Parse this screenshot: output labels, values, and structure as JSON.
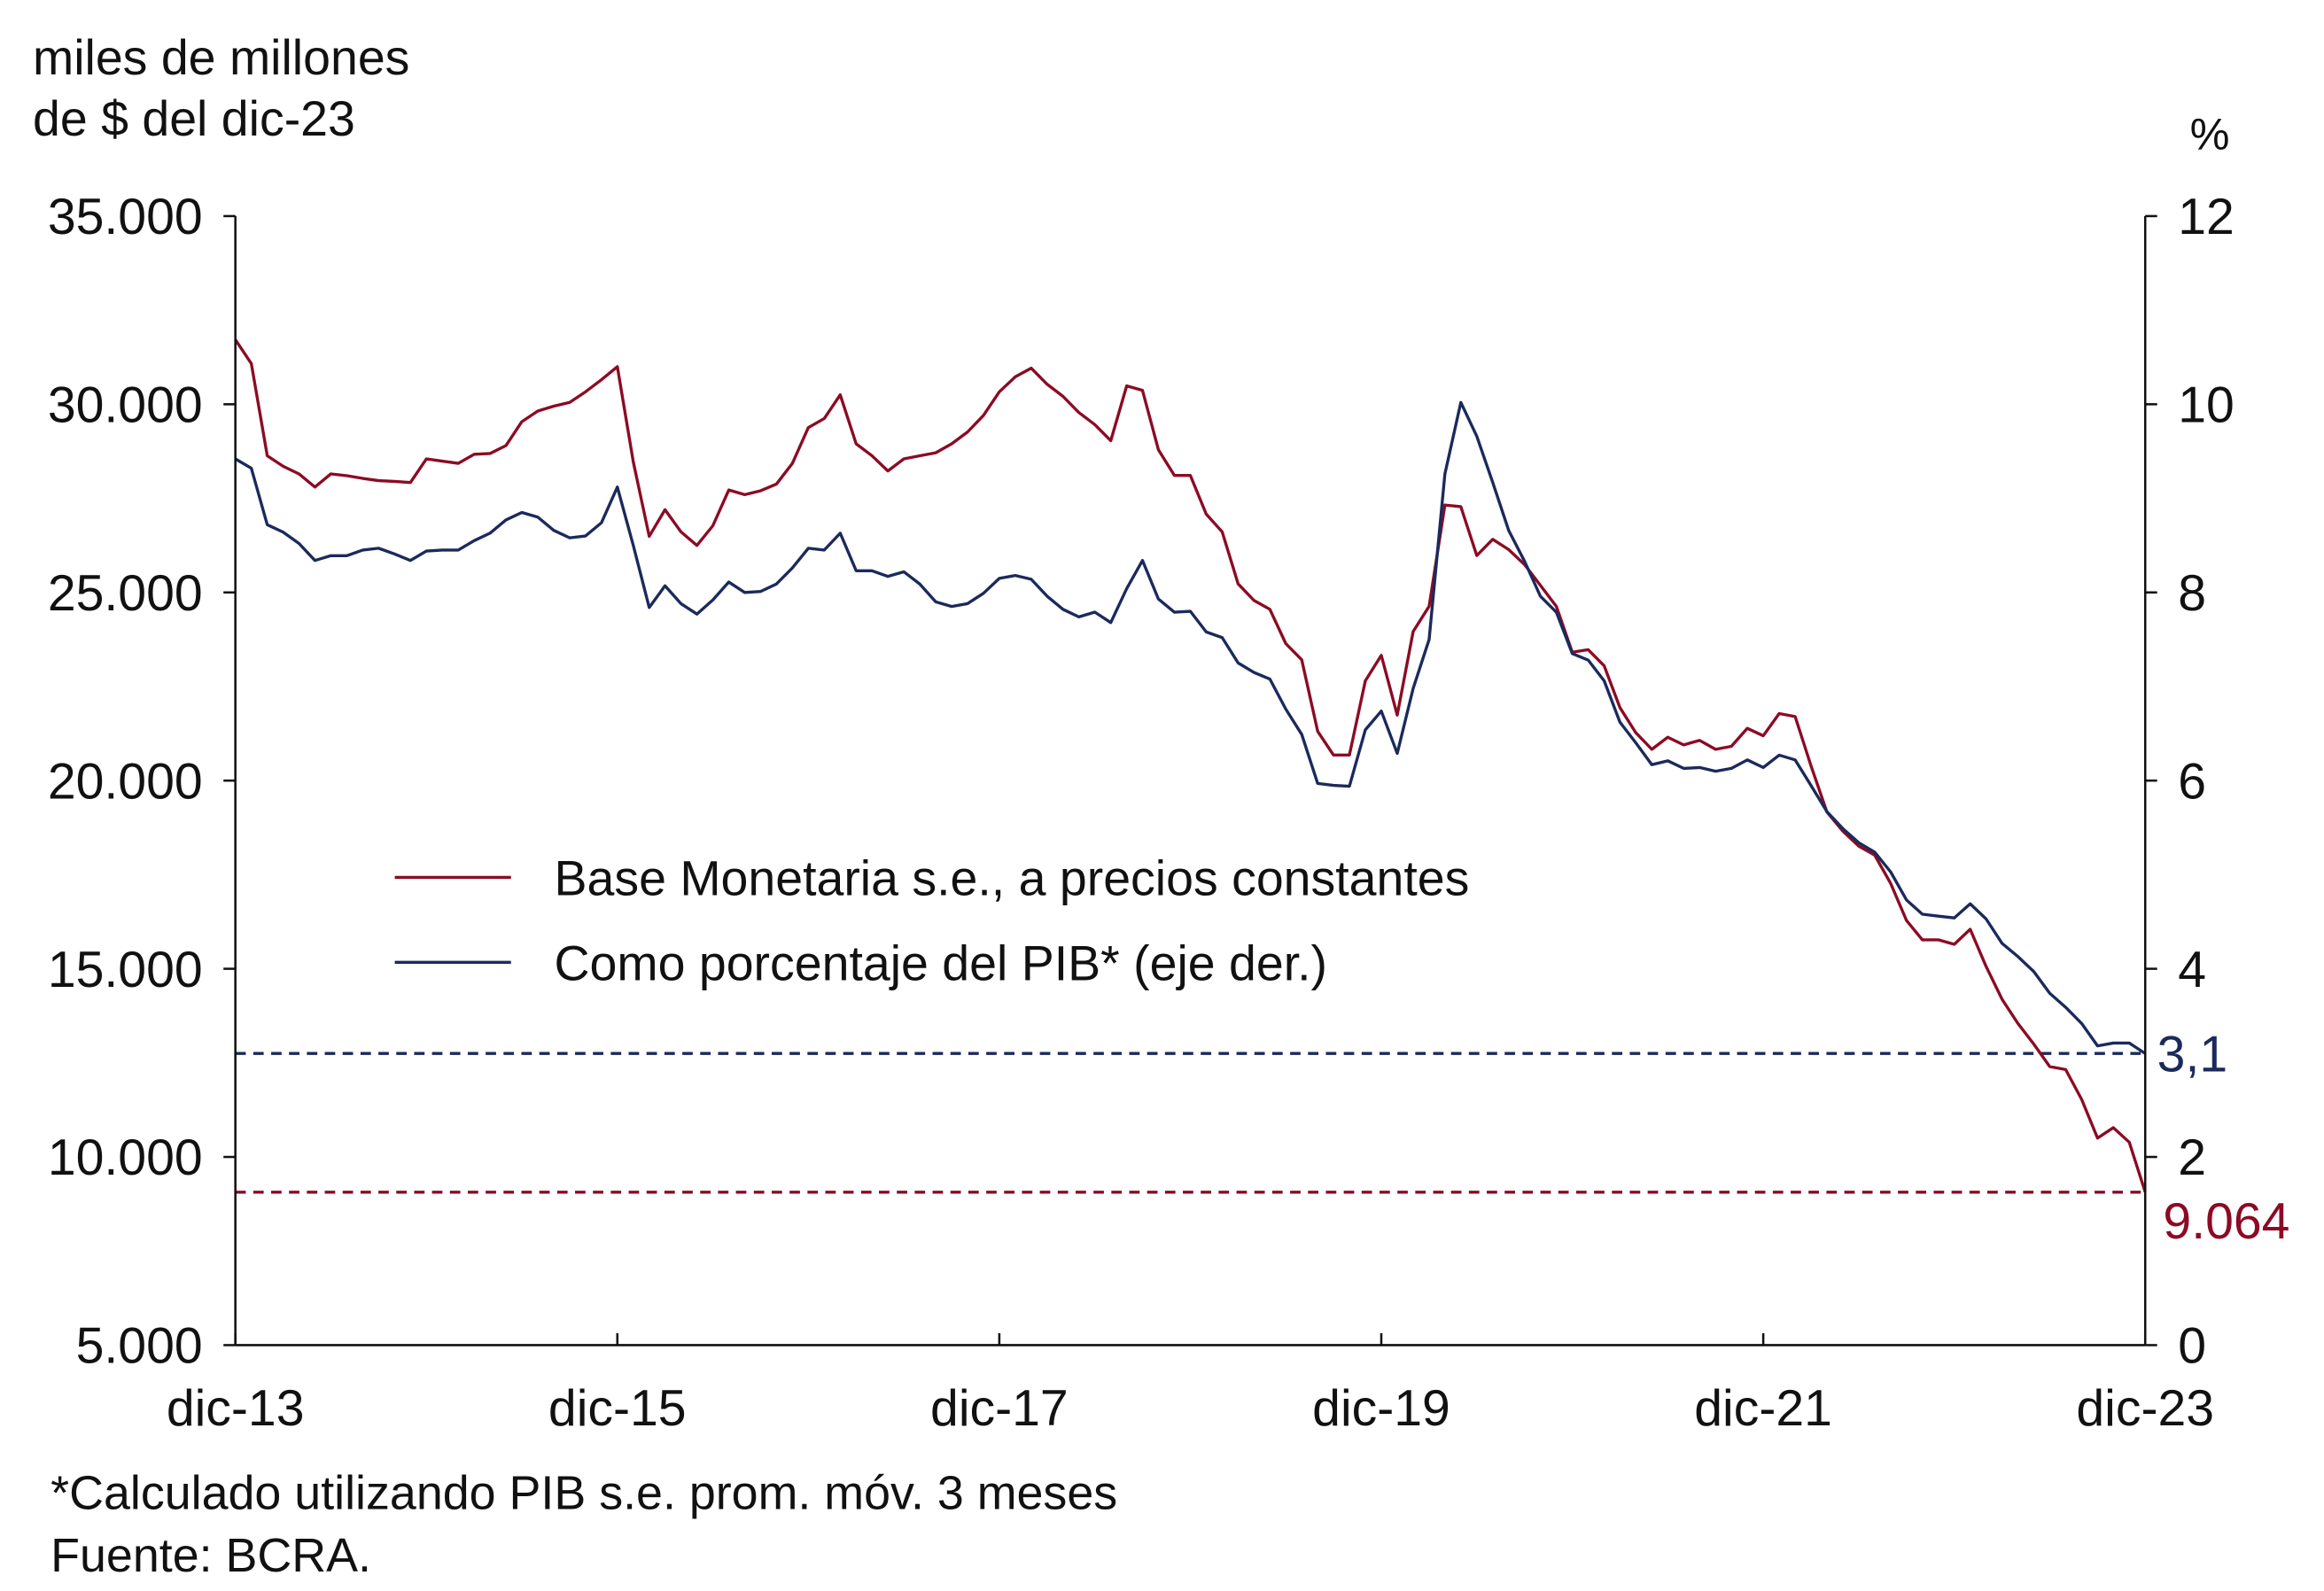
{
  "chart_data": {
    "type": "line",
    "left_axis_title": [
      "miles de millones",
      "de $ del dic-23"
    ],
    "right_axis_title": "%",
    "left_ylim": [
      5000,
      35000
    ],
    "right_ylim": [
      0,
      12
    ],
    "left_ticks": [
      "35.000",
      "30.000",
      "25.000",
      "20.000",
      "15.000",
      "10.000",
      "5.000"
    ],
    "left_tick_values": [
      35000,
      30000,
      25000,
      20000,
      15000,
      10000,
      5000
    ],
    "right_ticks": [
      "12",
      "10",
      "8",
      "6",
      "4",
      "2",
      "0"
    ],
    "right_tick_values": [
      12,
      10,
      8,
      6,
      4,
      2,
      0
    ],
    "x_ticks": [
      "dic-13",
      "dic-15",
      "dic-17",
      "dic-19",
      "dic-21",
      "dic-23"
    ],
    "x_tick_months": [
      0,
      24,
      48,
      72,
      96,
      120
    ],
    "x_range_months": [
      0,
      120
    ],
    "legend_placement": "center-left",
    "series": [
      {
        "name": "Base Monetaria s.e., a precios constantes",
        "axis": "left",
        "color": "#8c0b24",
        "values": [
          31715,
          31080,
          28630,
          28350,
          28150,
          27800,
          28150,
          28100,
          28030,
          27970,
          27950,
          27920,
          28550,
          28490,
          28430,
          28670,
          28690,
          28900,
          29540,
          29820,
          29950,
          30050,
          30330,
          30650,
          31000,
          28470,
          26490,
          27200,
          26610,
          26250,
          26770,
          27720,
          27600,
          27700,
          27880,
          28430,
          29380,
          29620,
          30250,
          28950,
          28630,
          28230,
          28550,
          28630,
          28710,
          28950,
          29260,
          29700,
          30330,
          30730,
          30960,
          30530,
          30210,
          29780,
          29460,
          29030,
          30490,
          30370,
          28790,
          28110,
          28110,
          27080,
          26610,
          25230,
          24790,
          24550,
          23640,
          23210,
          21310,
          20680,
          20680,
          22650,
          23330,
          21740,
          23960,
          24630,
          27320,
          27280,
          25980,
          26410,
          26140,
          25740,
          25190,
          24630,
          23410,
          23480,
          23050,
          21940,
          21270,
          20830,
          21150,
          20950,
          21070,
          20830,
          20910,
          21390,
          21190,
          21780,
          21700,
          20400,
          19170,
          18660,
          18260,
          18020,
          17270,
          16280,
          15770,
          15770,
          15650,
          16050,
          15060,
          14190,
          13550,
          13000,
          12400,
          12320,
          11530,
          10500,
          10780,
          10390,
          9064
        ]
      },
      {
        "name": "Como porcentaje del PIB* (eje der.)",
        "axis": "right",
        "color": "#1b2a5c",
        "values": [
          9.42,
          9.32,
          8.72,
          8.64,
          8.52,
          8.34,
          8.39,
          8.39,
          8.45,
          8.47,
          8.41,
          8.34,
          8.44,
          8.45,
          8.45,
          8.55,
          8.63,
          8.77,
          8.85,
          8.8,
          8.66,
          8.58,
          8.6,
          8.74,
          9.12,
          8.5,
          7.84,
          8.07,
          7.88,
          7.77,
          7.92,
          8.11,
          8.0,
          8.01,
          8.09,
          8.26,
          8.47,
          8.45,
          8.63,
          8.23,
          8.23,
          8.17,
          8.22,
          8.09,
          7.9,
          7.85,
          7.88,
          7.99,
          8.15,
          8.18,
          8.14,
          7.96,
          7.82,
          7.74,
          7.79,
          7.68,
          8.04,
          8.34,
          7.93,
          7.79,
          7.8,
          7.58,
          7.52,
          7.25,
          7.15,
          7.08,
          6.76,
          6.49,
          5.97,
          5.95,
          5.94,
          6.54,
          6.74,
          6.29,
          6.98,
          7.5,
          9.26,
          10.02,
          9.66,
          9.17,
          8.66,
          8.33,
          7.96,
          7.79,
          7.35,
          7.28,
          7.06,
          6.62,
          6.4,
          6.17,
          6.21,
          6.13,
          6.14,
          6.1,
          6.13,
          6.22,
          6.14,
          6.27,
          6.22,
          5.95,
          5.67,
          5.49,
          5.34,
          5.24,
          5.03,
          4.73,
          4.58,
          4.56,
          4.54,
          4.69,
          4.53,
          4.27,
          4.13,
          3.97,
          3.74,
          3.59,
          3.42,
          3.18,
          3.21,
          3.21,
          3.1
        ]
      }
    ],
    "reference_lines": [
      {
        "axis": "right",
        "value": 3.1,
        "label": "3,1",
        "color": "#1b2a5c",
        "style": "dashed"
      },
      {
        "axis": "left",
        "value": 9064,
        "label": "9.064",
        "color": "#8c0b24",
        "style": "dashed"
      }
    ],
    "footnotes": [
      "*Calculado utilizando PIB s.e. prom. móv. 3 meses",
      "Fuente: BCRA."
    ]
  }
}
